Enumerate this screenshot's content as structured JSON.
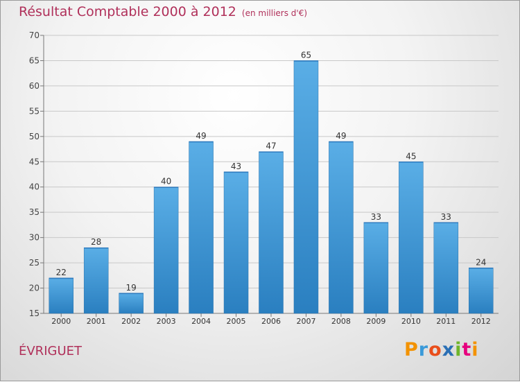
{
  "chart_data": {
    "type": "bar",
    "title": "Résultat Comptable 2000 à 2012",
    "subtitle": "(en milliers d'€)",
    "categories": [
      "2000",
      "2001",
      "2002",
      "2003",
      "2004",
      "2005",
      "2006",
      "2007",
      "2008",
      "2009",
      "2010",
      "2011",
      "2012"
    ],
    "values": [
      22,
      28,
      19,
      40,
      49,
      43,
      47,
      65,
      49,
      33,
      45,
      33,
      24
    ],
    "ylim": [
      15,
      70
    ],
    "yticks": [
      15,
      20,
      25,
      30,
      35,
      40,
      45,
      50,
      55,
      60,
      65,
      70
    ],
    "grid": true,
    "xlabel": "",
    "ylabel": "",
    "colors": {
      "bar_light": "#5aaee6",
      "bar_dark": "#2a7fc0",
      "title": "#b0305a"
    }
  },
  "footer": {
    "town": "ÉVRIGUET",
    "logo_text": "Proxiti",
    "logo_letters": [
      {
        "char": "P",
        "color": "#f39200"
      },
      {
        "char": "r",
        "color": "#3a9ad9"
      },
      {
        "char": "o",
        "color": "#e94e1b"
      },
      {
        "char": "x",
        "color": "#2a6fb5"
      },
      {
        "char": "i",
        "color": "#6fb52c"
      },
      {
        "char": "t",
        "color": "#e6007e"
      },
      {
        "char": "i",
        "color": "#f39200"
      }
    ]
  }
}
